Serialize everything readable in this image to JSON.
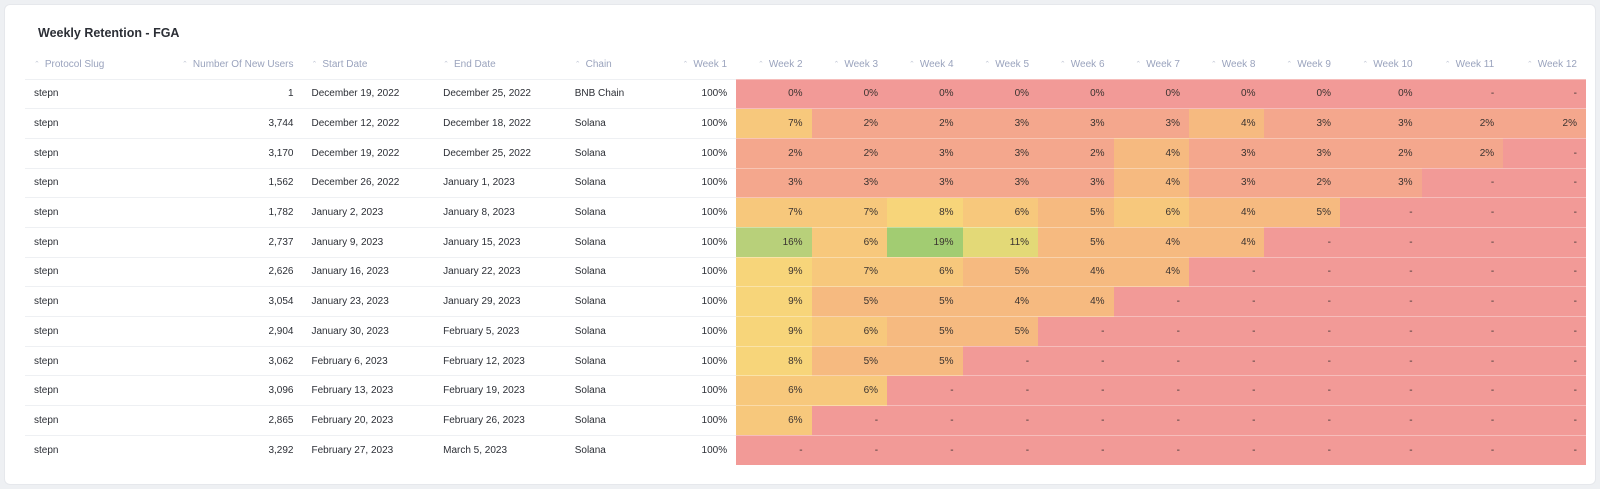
{
  "widget": {
    "title": "Weekly Retention - FGA"
  },
  "table": {
    "columns": [
      "Protocol Slug",
      "Number Of New Users",
      "Start Date",
      "End Date",
      "Chain",
      "Week 1",
      "Week 2",
      "Week 3",
      "Week 4",
      "Week 5",
      "Week 6",
      "Week 7",
      "Week 8",
      "Week 9",
      "Week 10",
      "Week 11",
      "Week 12"
    ],
    "rows": [
      {
        "slug": "stepn",
        "users": "1",
        "start": "December 19, 2022",
        "end": "December 25, 2022",
        "chain": "BNB Chain",
        "weeks": [
          "100%",
          "0%",
          "0%",
          "0%",
          "0%",
          "0%",
          "0%",
          "0%",
          "0%",
          "0%",
          "-",
          "-"
        ]
      },
      {
        "slug": "stepn",
        "users": "3,744",
        "start": "December 12, 2022",
        "end": "December 18, 2022",
        "chain": "Solana",
        "weeks": [
          "100%",
          "7%",
          "2%",
          "2%",
          "3%",
          "3%",
          "3%",
          "4%",
          "3%",
          "3%",
          "2%",
          "2%"
        ]
      },
      {
        "slug": "stepn",
        "users": "3,170",
        "start": "December 19, 2022",
        "end": "December 25, 2022",
        "chain": "Solana",
        "weeks": [
          "100%",
          "2%",
          "2%",
          "3%",
          "3%",
          "2%",
          "4%",
          "3%",
          "3%",
          "2%",
          "2%",
          "-"
        ]
      },
      {
        "slug": "stepn",
        "users": "1,562",
        "start": "December 26, 2022",
        "end": "January 1, 2023",
        "chain": "Solana",
        "weeks": [
          "100%",
          "3%",
          "3%",
          "3%",
          "3%",
          "3%",
          "4%",
          "3%",
          "2%",
          "3%",
          "-",
          "-"
        ]
      },
      {
        "slug": "stepn",
        "users": "1,782",
        "start": "January 2, 2023",
        "end": "January 8, 2023",
        "chain": "Solana",
        "weeks": [
          "100%",
          "7%",
          "7%",
          "8%",
          "6%",
          "5%",
          "6%",
          "4%",
          "5%",
          "-",
          "-",
          "-"
        ]
      },
      {
        "slug": "stepn",
        "users": "2,737",
        "start": "January 9, 2023",
        "end": "January 15, 2023",
        "chain": "Solana",
        "weeks": [
          "100%",
          "16%",
          "6%",
          "19%",
          "11%",
          "5%",
          "4%",
          "4%",
          "-",
          "-",
          "-",
          "-"
        ]
      },
      {
        "slug": "stepn",
        "users": "2,626",
        "start": "January 16, 2023",
        "end": "January 22, 2023",
        "chain": "Solana",
        "weeks": [
          "100%",
          "9%",
          "7%",
          "6%",
          "5%",
          "4%",
          "4%",
          "-",
          "-",
          "-",
          "-",
          "-"
        ]
      },
      {
        "slug": "stepn",
        "users": "3,054",
        "start": "January 23, 2023",
        "end": "January 29, 2023",
        "chain": "Solana",
        "weeks": [
          "100%",
          "9%",
          "5%",
          "5%",
          "4%",
          "4%",
          "-",
          "-",
          "-",
          "-",
          "-",
          "-"
        ]
      },
      {
        "slug": "stepn",
        "users": "2,904",
        "start": "January 30, 2023",
        "end": "February 5, 2023",
        "chain": "Solana",
        "weeks": [
          "100%",
          "9%",
          "6%",
          "5%",
          "5%",
          "-",
          "-",
          "-",
          "-",
          "-",
          "-",
          "-"
        ]
      },
      {
        "slug": "stepn",
        "users": "3,062",
        "start": "February 6, 2023",
        "end": "February 12, 2023",
        "chain": "Solana",
        "weeks": [
          "100%",
          "8%",
          "5%",
          "5%",
          "-",
          "-",
          "-",
          "-",
          "-",
          "-",
          "-",
          "-"
        ]
      },
      {
        "slug": "stepn",
        "users": "3,096",
        "start": "February 13, 2023",
        "end": "February 19, 2023",
        "chain": "Solana",
        "weeks": [
          "100%",
          "6%",
          "6%",
          "-",
          "-",
          "-",
          "-",
          "-",
          "-",
          "-",
          "-",
          "-"
        ]
      },
      {
        "slug": "stepn",
        "users": "2,865",
        "start": "February 20, 2023",
        "end": "February 26, 2023",
        "chain": "Solana",
        "weeks": [
          "100%",
          "6%",
          "-",
          "-",
          "-",
          "-",
          "-",
          "-",
          "-",
          "-",
          "-",
          "-"
        ]
      },
      {
        "slug": "stepn",
        "users": "3,292",
        "start": "February 27, 2023",
        "end": "March 5, 2023",
        "chain": "Solana",
        "weeks": [
          "100%",
          "-",
          "-",
          "-",
          "-",
          "-",
          "-",
          "-",
          "-",
          "-",
          "-",
          "-"
        ]
      }
    ]
  },
  "heatmap_colors": {
    "empty": "#f29a97",
    "low": "#f4a78d",
    "mid": "#f6ba80",
    "warm": "#f7c87c",
    "yellow": "#f7d57a",
    "lime": "#e3d977",
    "green": "#b8d07a",
    "bright_green": "#a2cc72"
  }
}
